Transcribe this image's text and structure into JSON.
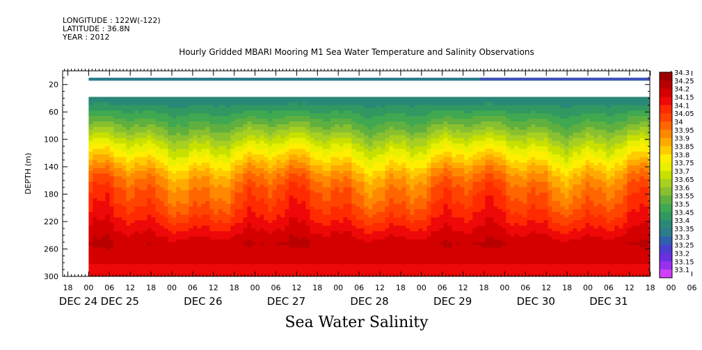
{
  "header": {
    "longitude": "LONGITUDE : 122W(-122)",
    "latitude": "LATITUDE : 36.8N",
    "year": "YEAR : 2012"
  },
  "chart_title": "Hourly Gridded MBARI Mooring M1 Sea Water Temperature and Salinity Observations",
  "bottom_title": "Sea Water Salinity",
  "chart_data": {
    "type": "heatmap",
    "ylabel": "DEPTH (m)",
    "ylim": [
      0,
      300
    ],
    "y_reversed": true,
    "y_ticks": [
      20,
      60,
      100,
      140,
      180,
      220,
      260,
      300
    ],
    "x_hour_ticks": [
      "18",
      "00",
      "06",
      "12",
      "18",
      "00",
      "06",
      "12",
      "18",
      "00",
      "06",
      "12",
      "18",
      "00",
      "06",
      "12",
      "18",
      "00",
      "06",
      "12",
      "18",
      "00",
      "06",
      "12",
      "18",
      "00",
      "06",
      "12",
      "18",
      "00",
      "06",
      "12",
      "18"
    ],
    "x_day_labels": [
      {
        "label": "DEC 24",
        "tick_index": 0.5
      },
      {
        "label": "DEC 25",
        "tick_index": 2.5
      },
      {
        "label": "DEC 26",
        "tick_index": 6.5
      },
      {
        "label": "DEC 27",
        "tick_index": 10.5
      },
      {
        "label": "DEC 28",
        "tick_index": 14.5
      },
      {
        "label": "DEC 29",
        "tick_index": 18.5
      },
      {
        "label": "DEC 30",
        "tick_index": 22.5
      },
      {
        "label": "DEC 31",
        "tick_index": 26
      }
    ],
    "data_start_tick_index": 1,
    "colorbar": {
      "levels": [
        "34.3",
        "34.25",
        "34.2",
        "34.15",
        "34.1",
        "34.05",
        "34",
        "33.95",
        "33.9",
        "33.85",
        "33.8",
        "33.75",
        "33.7",
        "33.65",
        "33.6",
        "33.55",
        "33.5",
        "33.45",
        "33.4",
        "33.35",
        "33.3",
        "33.25",
        "33.2",
        "33.15",
        "33.1"
      ],
      "colors": [
        "#9c0000",
        "#b80000",
        "#d40000",
        "#ee0808",
        "#ff2a00",
        "#ff4400",
        "#ff6600",
        "#ff8800",
        "#ffaa00",
        "#ffcc00",
        "#ffee00",
        "#e8f000",
        "#c8e000",
        "#a8d020",
        "#88c030",
        "#60b040",
        "#40a850",
        "#309860",
        "#2a8878",
        "#2c7c8c",
        "#3060b0",
        "#4a40d0",
        "#6a30e0",
        "#9a30ee",
        "#d040f8"
      ]
    },
    "profile": [
      {
        "depth": 10,
        "salinity": 33.38
      },
      {
        "depth": 36,
        "salinity": 33.4
      },
      {
        "depth": 50,
        "salinity": 33.46
      },
      {
        "depth": 70,
        "salinity": 33.55
      },
      {
        "depth": 90,
        "salinity": 33.65
      },
      {
        "depth": 110,
        "salinity": 33.76
      },
      {
        "depth": 130,
        "salinity": 33.86
      },
      {
        "depth": 150,
        "salinity": 33.96
      },
      {
        "depth": 170,
        "salinity": 34.03
      },
      {
        "depth": 190,
        "salinity": 34.07
      },
      {
        "depth": 210,
        "salinity": 34.12
      },
      {
        "depth": 230,
        "salinity": 34.18
      },
      {
        "depth": 250,
        "salinity": 34.24
      },
      {
        "depth": 270,
        "salinity": 34.22
      },
      {
        "depth": 290,
        "salinity": 34.17
      },
      {
        "depth": 300,
        "salinity": 34.15
      }
    ]
  }
}
